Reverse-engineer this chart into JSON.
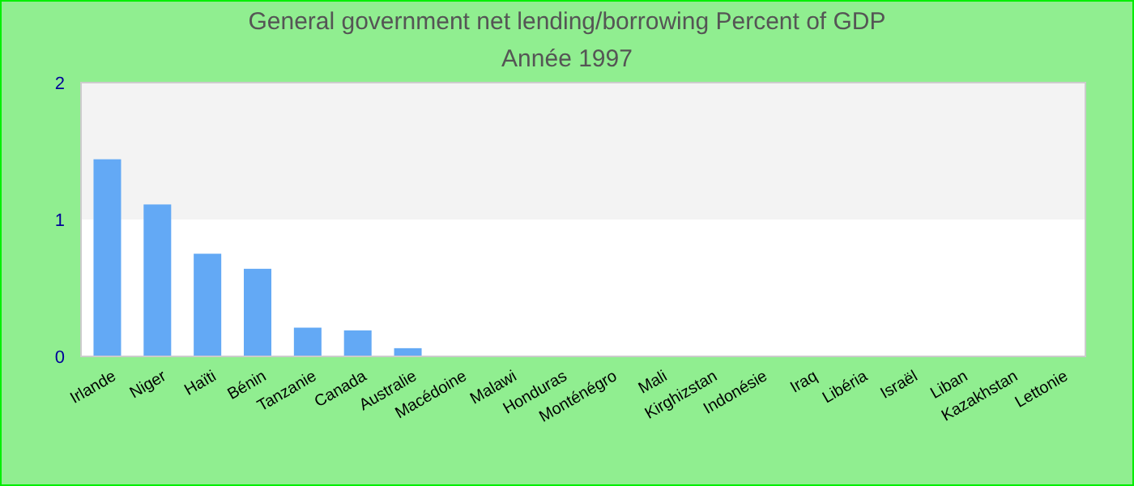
{
  "chart_data": {
    "type": "bar",
    "title": "General government net lending/borrowing  Percent of GDP",
    "subtitle": "Année 1997",
    "categories": [
      "Irlande",
      "Niger",
      "Haïti",
      "Bénin",
      "Tanzanie",
      "Canada",
      "Australie",
      "Macédoine",
      "Malawi",
      "Honduras",
      "Monténégro",
      "Mali",
      "Kirghizstan",
      "Indonésie",
      "Iraq",
      "Libéria",
      "Israël",
      "Liban",
      "Kazakhstan",
      "Lettonie"
    ],
    "values": [
      1.44,
      1.11,
      0.75,
      0.64,
      0.21,
      0.19,
      0.06,
      0,
      0,
      0,
      0,
      0,
      0,
      0,
      0,
      0,
      0,
      0,
      0,
      0
    ],
    "color": "#63a9f5",
    "ylim": [
      0,
      2
    ],
    "yticks": [
      0,
      1,
      2
    ],
    "grid": false,
    "bands": [
      {
        "axis": "y",
        "from": 1,
        "to": 2,
        "color": "#f3f3f3"
      }
    ]
  }
}
